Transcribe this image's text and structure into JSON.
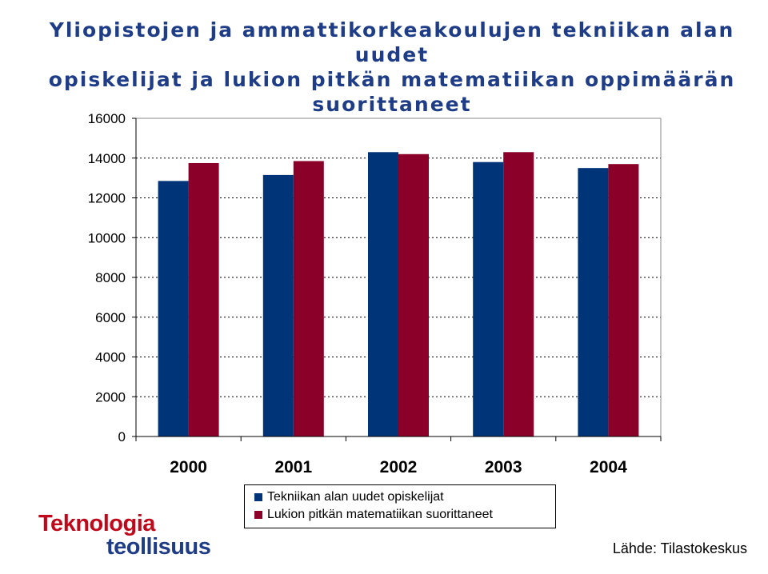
{
  "title_lines": [
    "Yliopistojen ja ammattikorkeakoulujen tekniikan alan uudet",
    "opiskelijat ja lukion pitkän matematiikan oppimäärän",
    "suorittaneet"
  ],
  "chart_data": {
    "type": "bar",
    "title": "Yliopistojen ja ammattikorkeakoulujen tekniikan alan uudet opiskelijat ja lukion pitkän matematiikan oppimäärän suorittaneet",
    "categories": [
      "2000",
      "2001",
      "2002",
      "2003",
      "2004"
    ],
    "series": [
      {
        "name": "Tekniikan alan uudet opiskelijat",
        "values": [
          12850,
          13150,
          14300,
          13800,
          13500
        ],
        "color": "#003478"
      },
      {
        "name": "Lukion pitkän matematiikan suorittaneet",
        "values": [
          13750,
          13850,
          14200,
          14300,
          13700
        ],
        "color": "#8b0029"
      }
    ],
    "ylim": [
      0,
      16000
    ],
    "yticks": [
      "0",
      "2000",
      "4000",
      "6000",
      "8000",
      "10000",
      "12000",
      "14000",
      "16000"
    ],
    "grid": true,
    "legend_position": "bottom"
  },
  "logo": {
    "line1": "Teknologia",
    "line2": "teollisuus"
  },
  "source": "Lähde: Tilastokeskus"
}
